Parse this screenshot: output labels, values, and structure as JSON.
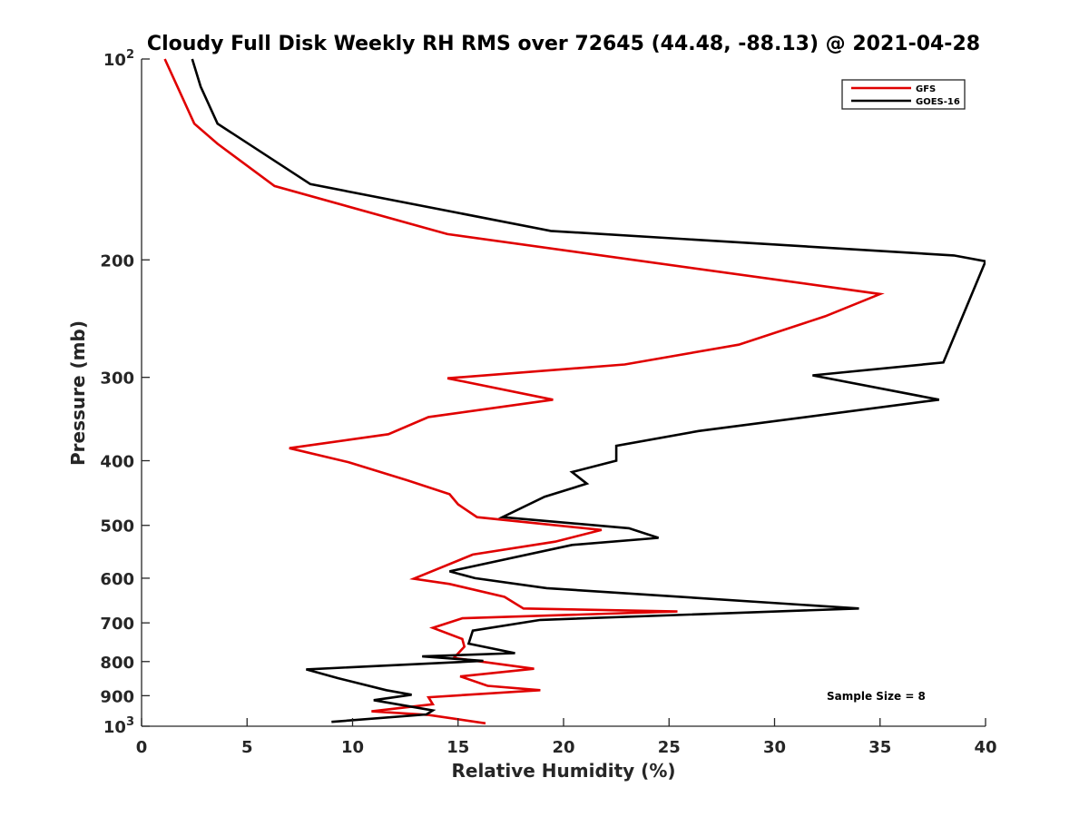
{
  "chart_data": {
    "type": "line",
    "title": "Cloudy Full Disk Weekly RH RMS over 72645 (44.48, -88.13) @ 2021-04-28",
    "xlabel": "Relative Humidity (%)",
    "ylabel": "Pressure (mb)",
    "xlim": [
      0,
      40
    ],
    "ylim": [
      100,
      1000
    ],
    "yscale": "log",
    "y_reversed": true,
    "xticks": [
      0,
      5,
      10,
      15,
      20,
      25,
      30,
      35,
      40
    ],
    "yticks": [
      {
        "value": 100,
        "label": "10",
        "sup": "2"
      },
      {
        "value": 200,
        "label": "200"
      },
      {
        "value": 300,
        "label": "300"
      },
      {
        "value": 400,
        "label": "400"
      },
      {
        "value": 500,
        "label": "500"
      },
      {
        "value": 600,
        "label": "600"
      },
      {
        "value": 700,
        "label": "700"
      },
      {
        "value": 800,
        "label": "800"
      },
      {
        "value": 900,
        "label": "900"
      },
      {
        "value": 1000,
        "label": "10",
        "sup": "3"
      }
    ],
    "grid": false,
    "legend_position": "top-right",
    "annotation": "Sample Size = 8",
    "series": [
      {
        "name": "GFS",
        "color": "#e00000",
        "x": [
          1.1,
          1.7,
          2.5,
          3.6,
          6.3,
          14.5,
          35.0,
          32.4,
          28.3,
          22.9,
          14.5,
          19.5,
          13.6,
          11.7,
          7.0,
          9.8,
          12.6,
          14.6,
          15.0,
          15.9,
          21.8,
          19.6,
          15.7,
          12.9,
          14.6,
          17.2,
          18.1,
          25.4,
          15.2,
          13.8,
          15.2,
          15.3,
          14.8,
          18.6,
          15.1,
          16.4,
          18.9,
          13.6,
          13.8,
          10.9,
          13.6,
          16.3
        ],
        "y": [
          100,
          110,
          125,
          134,
          155,
          183,
          225,
          243,
          268,
          287,
          301,
          324,
          344,
          365,
          383,
          402,
          428,
          449,
          465,
          486,
          508,
          529,
          553,
          601,
          612,
          640,
          666,
          673,
          689,
          712,
          740,
          760,
          790,
          820,
          842,
          870,
          883,
          905,
          927,
          950,
          962,
          990
        ]
      },
      {
        "name": "GOES-16",
        "color": "#000000",
        "x": [
          2.4,
          2.8,
          3.6,
          8.0,
          19.4,
          38.5,
          40.0,
          38.0,
          31.8,
          37.8,
          26.4,
          22.5,
          22.5,
          20.4,
          21.1,
          19.1,
          17.1,
          23.1,
          24.5,
          20.4,
          14.6,
          15.8,
          19.2,
          34.0,
          18.9,
          15.7,
          15.5,
          17.7,
          13.3,
          16.2,
          7.8,
          9.3,
          11.6,
          12.8,
          11.0,
          13.8,
          13.5,
          9.0
        ],
        "y": [
          100,
          110,
          125,
          154,
          181,
          197,
          201,
          285,
          298,
          324,
          361,
          380,
          400,
          416,
          433,
          453,
          486,
          505,
          522,
          535,
          586,
          600,
          621,
          666,
          693,
          719,
          752,
          777,
          786,
          798,
          822,
          847,
          883,
          897,
          914,
          947,
          960,
          985
        ]
      }
    ]
  }
}
